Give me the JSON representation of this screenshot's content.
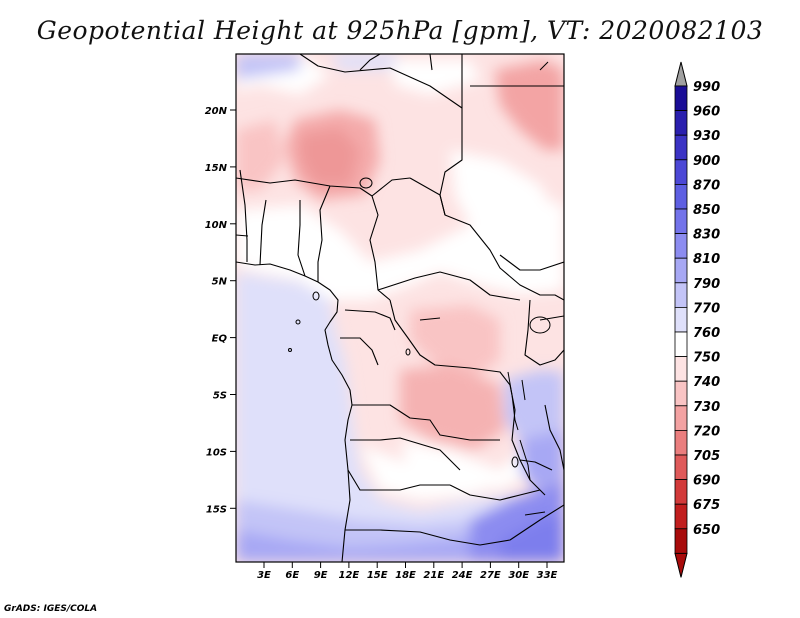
{
  "title": "Geopotential Height at 925hPa [gpm], VT: 2020082103",
  "credit": "GrADS: IGES/COLA",
  "map": {
    "y_ticks": [
      "20N",
      "15N",
      "10N",
      "5N",
      "EQ",
      "5S",
      "10S",
      "15S"
    ],
    "x_ticks": [
      "3E",
      "6E",
      "9E",
      "12E",
      "15E",
      "18E",
      "21E",
      "24E",
      "27E",
      "30E",
      "33E"
    ]
  },
  "colorbar": {
    "levels": [
      "990",
      "960",
      "930",
      "900",
      "870",
      "850",
      "830",
      "810",
      "790",
      "770",
      "760",
      "750",
      "740",
      "730",
      "720",
      "705",
      "690",
      "675",
      "650"
    ],
    "colors": [
      "#1a0d96",
      "#2a1fae",
      "#3b33c4",
      "#4c48d6",
      "#5e5fe2",
      "#7373ea",
      "#8c8cf0",
      "#a7a8f4",
      "#c3c4f7",
      "#dfe0fa",
      "#ffffff",
      "#fde3e3",
      "#f9c4c4",
      "#f3a2a2",
      "#ea7e7e",
      "#df5a5a",
      "#d23a3a",
      "#c11e1e",
      "#a80b0b"
    ],
    "top_arrow_color": "#a0a0a0",
    "bottom_arrow_color": "#a80b0b"
  }
}
